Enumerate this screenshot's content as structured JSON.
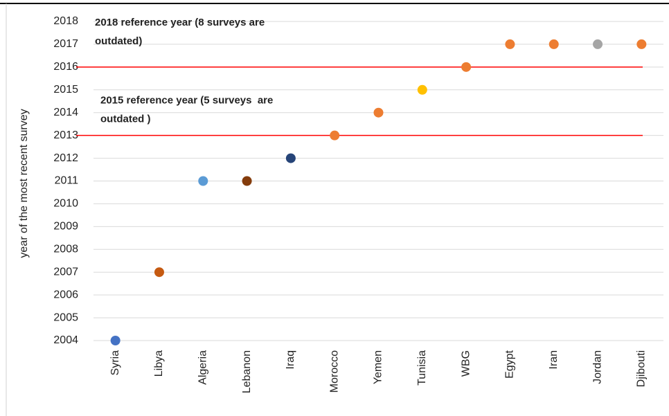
{
  "chart_data": {
    "type": "scatter",
    "y_label": "year of the most recent survey",
    "categories": [
      "Syria",
      "Libya",
      "Algeria",
      "Lebanon",
      "Iraq",
      "Morocco",
      "Yemen",
      "Tunisia",
      "WBG",
      "Egypt",
      "Iran",
      "Jordan",
      "Djibouti"
    ],
    "values": [
      2004,
      2007,
      2011,
      2011,
      2012,
      2013,
      2014,
      2015,
      2016,
      2017,
      2017,
      2017,
      2017
    ],
    "colors": [
      "#4472c4",
      "#c55a11",
      "#5b9bd5",
      "#843c0c",
      "#264478",
      "#ed7d31",
      "#ed7d31",
      "#ffc000",
      "#ed7d31",
      "#ed7d31",
      "#ed7d31",
      "#a5a5a5",
      "#ed7d31"
    ],
    "ylim": [
      2004,
      2018
    ],
    "yticks": [
      2004,
      2005,
      2006,
      2007,
      2008,
      2009,
      2010,
      2011,
      2012,
      2013,
      2014,
      2015,
      2016,
      2017,
      2018
    ],
    "grid": true,
    "reference_lines": [
      {
        "value": 2016,
        "color": "#ff0000",
        "text": [
          "2018 reference year (8 surveys are",
          "outdated)"
        ]
      },
      {
        "value": 2013,
        "color": "#ff0000",
        "text": [
          "2015 reference year (5 surveys  are",
          "outdated )"
        ]
      }
    ]
  }
}
